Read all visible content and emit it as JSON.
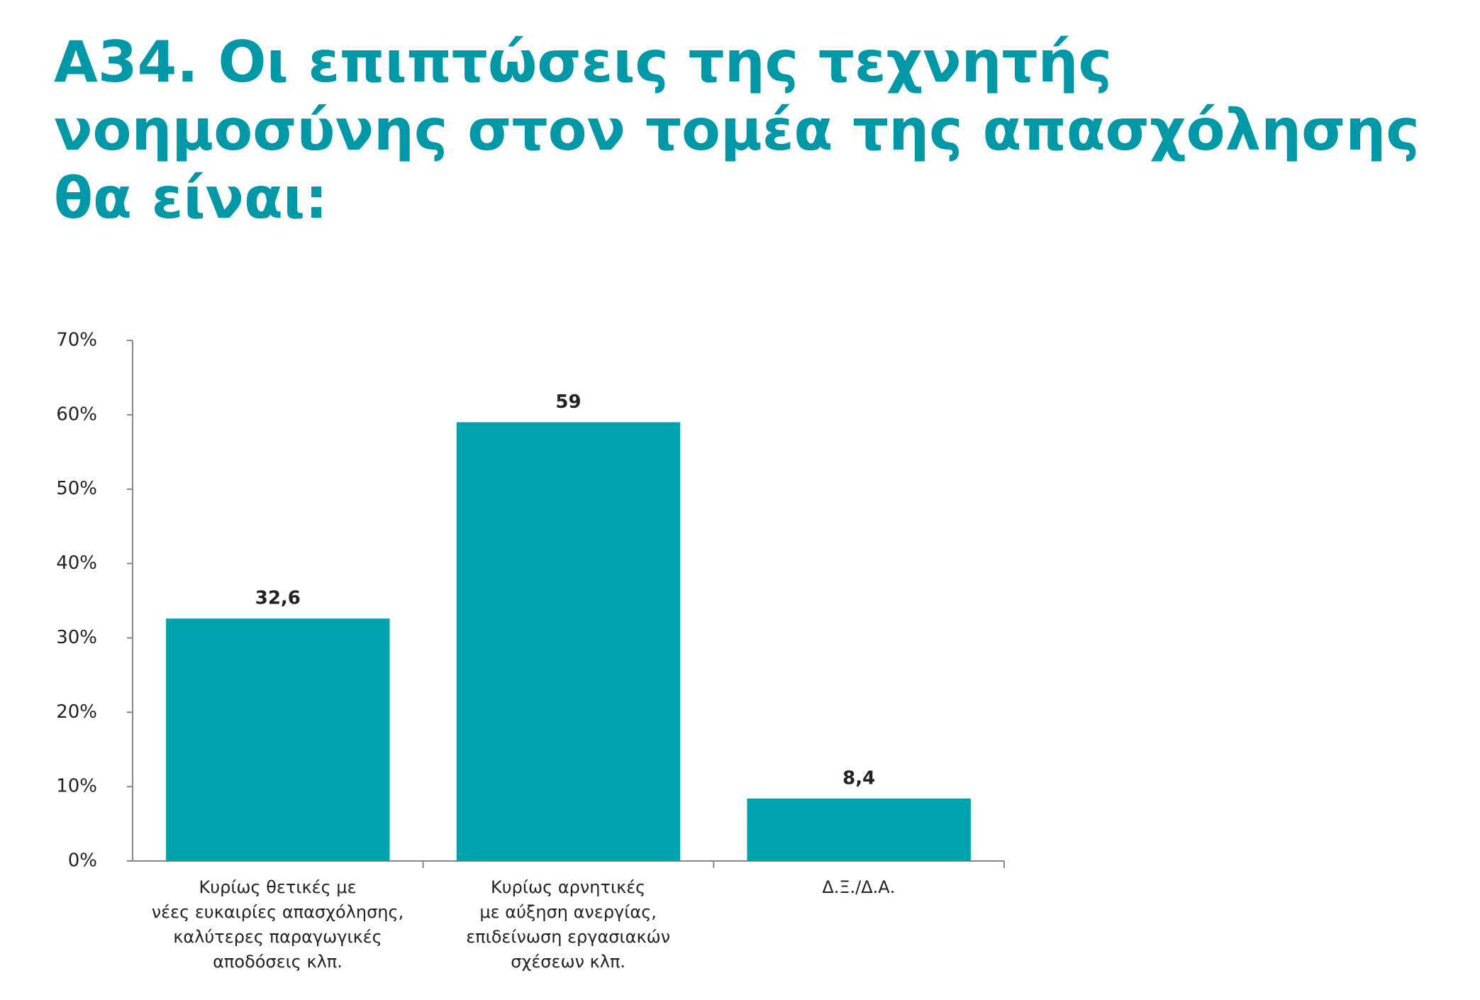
{
  "chart_data": {
    "type": "bar",
    "title": "Α34. Οι επιπτώσεις της τεχνητής νοημοσύνης στον τομέα της απασχόλησης θα είναι:",
    "categories": [
      "Κυρίως θετικές με\nνέες ευκαιρίες απασχόλησης,\nκαλύτερες παραγωγικές\nαποδόσεις κλπ.",
      "Κυρίως αρνητικές\nμε αύξηση ανεργίας,\nεπιδείνωση εργασιακών\nσχέσεων κλπ.",
      "Δ.Ξ./Δ.Α."
    ],
    "values": [
      32.6,
      59,
      8.4
    ],
    "value_labels": [
      "32,6",
      "59",
      "8,4"
    ],
    "color": "#00a3ad",
    "ylim": [
      0,
      70
    ],
    "yticks": [
      {
        "value": 0,
        "label": "0%"
      },
      {
        "value": 10,
        "label": "10%"
      },
      {
        "value": 20,
        "label": "20%"
      },
      {
        "value": 30,
        "label": "30%"
      },
      {
        "value": 40,
        "label": "40%"
      },
      {
        "value": 50,
        "label": "50%"
      },
      {
        "value": 60,
        "label": "60%"
      },
      {
        "value": 70,
        "label": "70%"
      }
    ],
    "grid": false
  }
}
